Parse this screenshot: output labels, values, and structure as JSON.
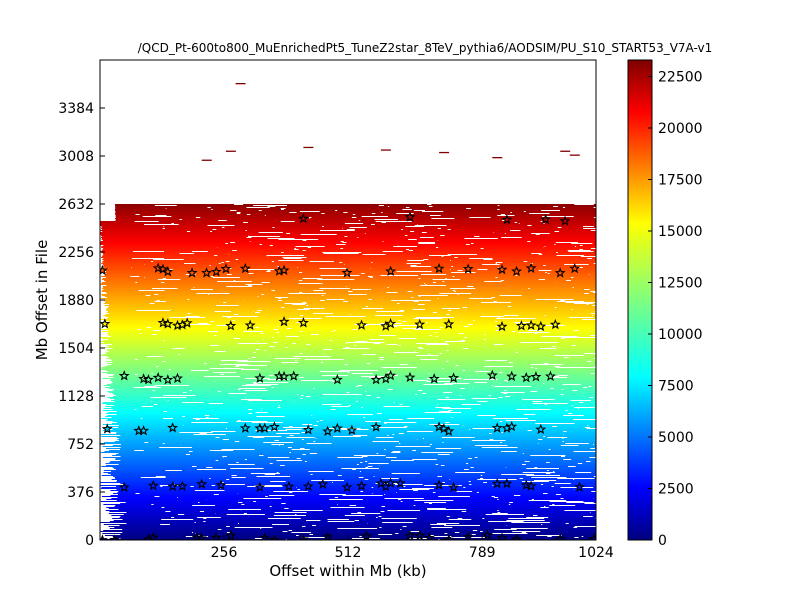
{
  "figure": {
    "title": "/QCD_Pt-600to800_MuEnrichedPt5_TuneZ2star_8TeV_pythia6/AODSIM/PU_S10_START53_V7A-v1",
    "xlabel": "Offset within Mb (kb)",
    "ylabel": "Mb Offset in File"
  },
  "chart_data": {
    "type": "scatter",
    "title": "/QCD_Pt-600to800_MuEnrichedPt5_TuneZ2star_8TeV_pythia6/AODSIM/PU_S10_START53_V7A-v1",
    "xlabel": "Offset within Mb (kb)",
    "ylabel": "Mb Offset in File",
    "xlim": [
      0,
      1024
    ],
    "ylim": [
      0,
      3760
    ],
    "x_ticks": [
      "256",
      "512",
      "789",
      "1024"
    ],
    "y_ticks": [
      "0",
      "376",
      "752",
      "1128",
      "1504",
      "1880",
      "2256",
      "2632",
      "3008",
      "3384"
    ],
    "colorbar": {
      "range": [
        0,
        23300
      ],
      "ticks": [
        "0",
        "2500",
        "5000",
        "7500",
        "10000",
        "12500",
        "15000",
        "17500",
        "20000",
        "22500"
      ],
      "colormap": "jet"
    },
    "read_segments": [
      {
        "y_start": 0,
        "y_end": 2632,
        "color_start": 0,
        "color_end": 23000,
        "x_range": [
          0,
          1024
        ]
      }
    ],
    "sparse_reads": [
      {
        "x": 260,
        "y": 3050
      },
      {
        "x": 420,
        "y": 3080
      },
      {
        "x": 580,
        "y": 3060
      },
      {
        "x": 810,
        "y": 3000
      },
      {
        "x": 950,
        "y": 3050
      },
      {
        "x": 970,
        "y": 3020
      },
      {
        "x": 280,
        "y": 3580
      },
      {
        "x": 210,
        "y": 2980
      },
      {
        "x": 700,
        "y": 3040
      }
    ],
    "marker_rows": [
      {
        "y": 20,
        "x": [
          5,
          30,
          100,
          110,
          200,
          210,
          240,
          270,
          340,
          360,
          420,
          470,
          550,
          640,
          660,
          680,
          720,
          760,
          800,
          830,
          860,
          950,
          1020
        ]
      },
      {
        "y": 430,
        "x": [
          50,
          110,
          150,
          170,
          210,
          250,
          330,
          390,
          430,
          460,
          510,
          540,
          580,
          590,
          600,
          620,
          700,
          730,
          820,
          840,
          880,
          890,
          990
        ]
      },
      {
        "y": 870,
        "x": [
          15,
          80,
          90,
          150,
          300,
          330,
          340,
          360,
          430,
          470,
          490,
          520,
          570,
          700,
          710,
          720,
          820,
          840,
          850,
          910
        ]
      },
      {
        "y": 1270,
        "x": [
          50,
          90,
          100,
          120,
          140,
          160,
          330,
          370,
          380,
          400,
          490,
          570,
          590,
          600,
          640,
          690,
          730,
          810,
          850,
          880,
          900,
          930
        ]
      },
      {
        "y": 1690,
        "x": [
          10,
          130,
          140,
          160,
          170,
          180,
          270,
          310,
          380,
          420,
          540,
          590,
          600,
          660,
          720,
          830,
          870,
          890,
          910,
          940
        ]
      },
      {
        "y": 2110,
        "x": [
          5,
          120,
          130,
          140,
          190,
          220,
          240,
          260,
          300,
          370,
          380,
          510,
          600,
          700,
          760,
          830,
          860,
          890,
          950,
          980
        ]
      },
      {
        "y": 2510,
        "x": [
          420,
          640,
          840,
          920,
          960
        ]
      }
    ]
  }
}
